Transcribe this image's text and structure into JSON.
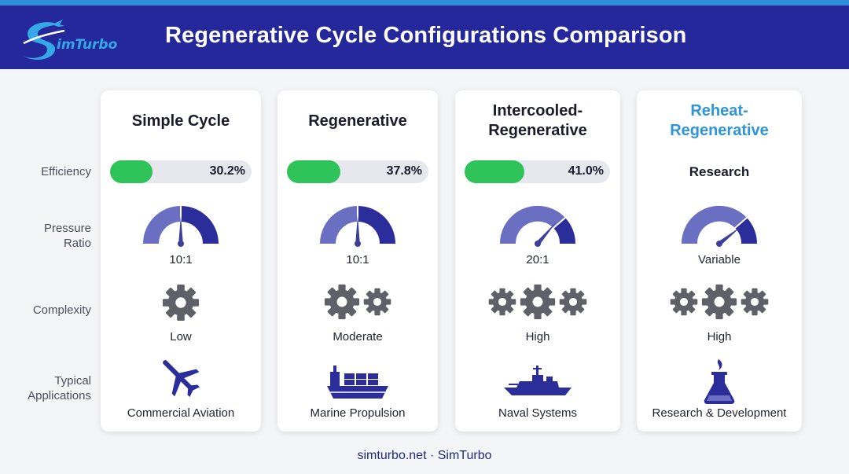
{
  "header": {
    "title": "Regenerative Cycle Configurations Comparison",
    "logo_text": "imTurbo"
  },
  "row_labels": {
    "efficiency": "Efficiency",
    "pressure_ratio": [
      "Pressure",
      "Ratio"
    ],
    "complexity": "Complexity",
    "applications": [
      "Typical",
      "Applications"
    ]
  },
  "cards": [
    {
      "title": [
        "Simple Cycle"
      ],
      "efficiency": "30.2%",
      "efficiency_fraction": 0.302,
      "pressure_ratio": "10:1",
      "complexity": "Low",
      "complexity_gears": 1,
      "application": "Commercial Aviation",
      "application_icon": "airplane-icon"
    },
    {
      "title": [
        "Regenerative"
      ],
      "efficiency": "37.8%",
      "efficiency_fraction": 0.378,
      "pressure_ratio": "10:1",
      "complexity": "Moderate",
      "complexity_gears": 2,
      "application": "Marine Propulsion",
      "application_icon": "cargo-ship-icon"
    },
    {
      "title": [
        "Intercooled-",
        "Regenerative"
      ],
      "efficiency": "41.0%",
      "efficiency_fraction": 0.41,
      "pressure_ratio": "20:1",
      "complexity": "High",
      "complexity_gears": 3,
      "application": "Naval Systems",
      "application_icon": "warship-icon"
    },
    {
      "title": [
        "Reheat-",
        "Regenerative"
      ],
      "efficiency_label": "Research",
      "pressure_ratio": "Variable",
      "complexity": "High",
      "complexity_gears": 3,
      "application": "Research & Development",
      "application_icon": "flask-icon"
    }
  ],
  "footer": "simturbo.net · SimTurbo",
  "colors": {
    "header_bg": "#24289a",
    "top_strip": "#2f8fd8",
    "accent_title": "#2e95d6",
    "efficiency_fill": "#2ec45a",
    "gauge_light": "#6b6fc2",
    "gauge_dark": "#2a2d9a",
    "gear": "#5f6068"
  }
}
